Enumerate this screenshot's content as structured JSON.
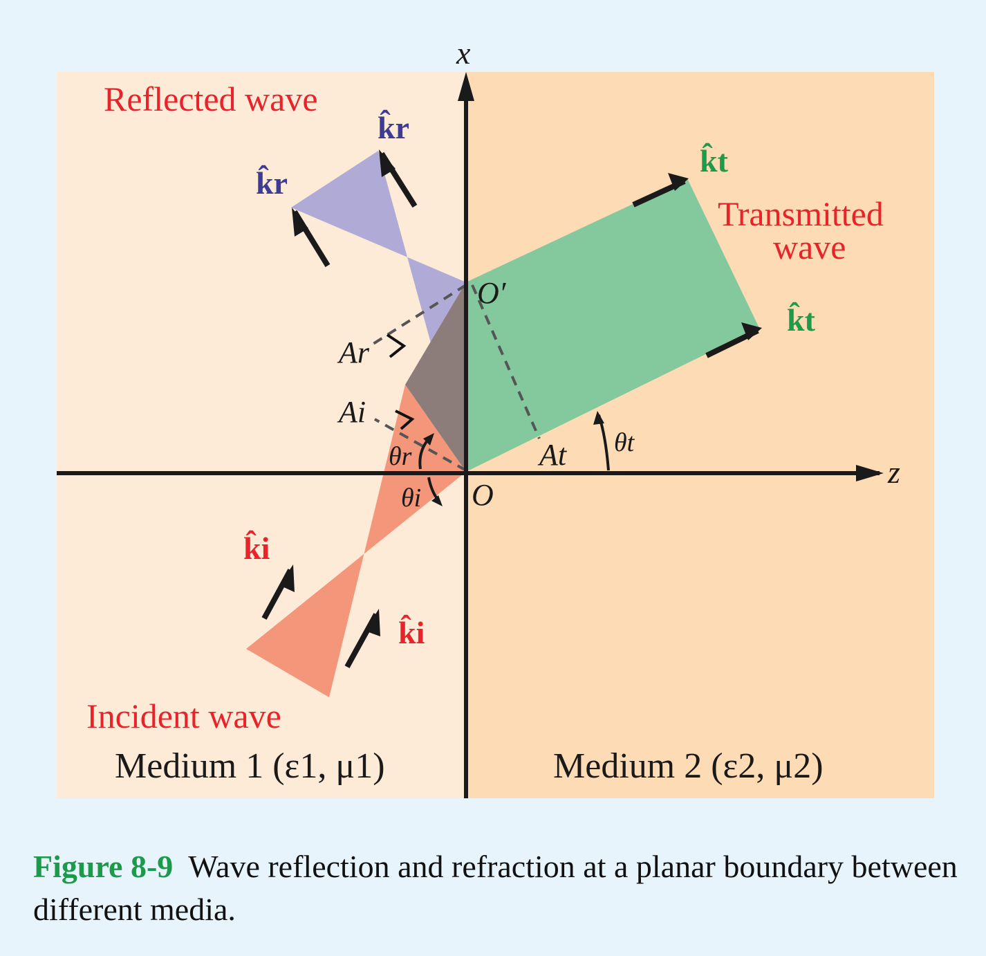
{
  "labels": {
    "reflected_wave": "Reflected wave",
    "transmitted_wave_line1": "Transmitted",
    "transmitted_wave_line2": "wave",
    "incident_wave": "Incident wave",
    "medium1": "Medium 1 (ε1, μ1)",
    "medium2": "Medium 2 (ε2, μ2)",
    "axis_x": "x",
    "axis_z": "z",
    "origin": "O",
    "origin_prime": "O′",
    "k_r": "k̂r",
    "k_t": "k̂t",
    "k_i": "k̂i",
    "A_r": "Ar",
    "A_i": "Ai",
    "A_t": "At",
    "theta_r": "θr",
    "theta_i": "θi",
    "theta_t": "θt"
  },
  "colors": {
    "page_background": "#e8f4fc",
    "medium1_fill": "#fdebd8",
    "medium2_fill": "#fddbb4",
    "incident_fill": "#f4967a",
    "reflected_fill": "#b0abd6",
    "transmitted_fill": "#84c99d",
    "overlap_fill": "#8c7d7a",
    "label_red": "#e8232a",
    "label_blue": "#3d3b94",
    "label_green": "#1e9a48",
    "caption_label": "#1a9a4a"
  },
  "caption": {
    "label": "Figure 8-9",
    "text": "Wave reflection and refraction at a planar boundary between different media."
  }
}
